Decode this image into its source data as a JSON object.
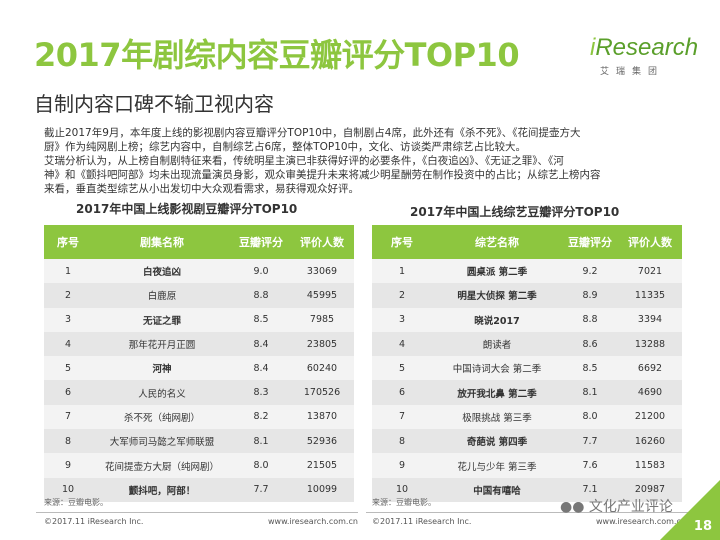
{
  "title": "2017年剧综内容豆瓣评分TOP10",
  "subtitle": "自制内容口碑不输卫视内容",
  "logo": {
    "text_prefix": "i",
    "text_main": "Research",
    "cn": "艾瑞集团"
  },
  "intro": [
    "截止2017年9月，本年度上线的影视剧内容豆瓣评分TOP10中，自制剧占4席，此外还有《杀不死》、《花间提壶方大",
    "厨》作为纯网剧上榜；综艺内容中，自制综艺占6席，整体TOP10中，文化、访谈类严肃综艺占比较大。",
    "艾瑞分析认为，从上榜自制剧特征来看，传统明星主演已非获得好评的必要条件，《白夜追凶》、《无证之罪》、《河",
    "神》和《颤抖吧阿部》均未出现流量演员身影，观众审美提升未来将减少明星酬劳在制作投资中的占比；从综艺上榜内容",
    "来看，垂直类型综艺从小出发切中大众观看需求，易获得观众好评。"
  ],
  "drama": {
    "title": "2017年中国上线影视剧豆瓣评分TOP10",
    "headers": [
      "序号",
      "剧集名称",
      "豆瓣评分",
      "评价人数"
    ],
    "rows": [
      {
        "rank": "1",
        "name": "白夜追凶",
        "score": "9.0",
        "count": "33069",
        "bold": true
      },
      {
        "rank": "2",
        "name": "白鹿原",
        "score": "8.8",
        "count": "45995",
        "bold": false
      },
      {
        "rank": "3",
        "name": "无证之罪",
        "score": "8.5",
        "count": "7985",
        "bold": true
      },
      {
        "rank": "4",
        "name": "那年花开月正圆",
        "score": "8.4",
        "count": "23805",
        "bold": false
      },
      {
        "rank": "5",
        "name": "河神",
        "score": "8.4",
        "count": "60240",
        "bold": true
      },
      {
        "rank": "6",
        "name": "人民的名义",
        "score": "8.3",
        "count": "170526",
        "bold": false
      },
      {
        "rank": "7",
        "name": "杀不死（纯网剧）",
        "score": "8.2",
        "count": "13870",
        "bold": false
      },
      {
        "rank": "8",
        "name": "大军师司马懿之军师联盟",
        "score": "8.1",
        "count": "52936",
        "bold": false
      },
      {
        "rank": "9",
        "name": "花间提壶方大厨（纯网剧）",
        "score": "8.0",
        "count": "21505",
        "bold": false
      },
      {
        "rank": "10",
        "name": "颤抖吧，阿部！",
        "score": "7.7",
        "count": "10099",
        "bold": true
      }
    ],
    "source": "来源：豆瓣电影。"
  },
  "variety": {
    "title": "2017年中国上线综艺豆瓣评分TOP10",
    "headers": [
      "序号",
      "综艺名称",
      "豆瓣评分",
      "评价人数"
    ],
    "rows": [
      {
        "rank": "1",
        "name": "圆桌派 第二季",
        "score": "9.2",
        "count": "7021",
        "bold": true
      },
      {
        "rank": "2",
        "name": "明星大侦探 第二季",
        "score": "8.9",
        "count": "11335",
        "bold": true
      },
      {
        "rank": "3",
        "name": "晓说2017",
        "score": "8.8",
        "count": "3394",
        "bold": true
      },
      {
        "rank": "4",
        "name": "朗读者",
        "score": "8.6",
        "count": "13288",
        "bold": false
      },
      {
        "rank": "5",
        "name": "中国诗词大会 第二季",
        "score": "8.5",
        "count": "6692",
        "bold": false
      },
      {
        "rank": "6",
        "name": "放开我北鼻 第二季",
        "score": "8.1",
        "count": "4690",
        "bold": true
      },
      {
        "rank": "7",
        "name": "极限挑战 第三季",
        "score": "8.0",
        "count": "21200",
        "bold": false
      },
      {
        "rank": "8",
        "name": "奇葩说 第四季",
        "score": "7.7",
        "count": "16260",
        "bold": true
      },
      {
        "rank": "9",
        "name": "花儿与少年 第三季",
        "score": "7.6",
        "count": "11583",
        "bold": false
      },
      {
        "rank": "10",
        "name": "中国有嘻哈",
        "score": "7.1",
        "count": "20987",
        "bold": true
      }
    ],
    "source": "来源：豆瓣电影。"
  },
  "footer": {
    "copyright": "©2017.11 iResearch Inc.",
    "url": "www.iresearch.com.cn"
  },
  "watermark": "文化产业评论",
  "page_number": "18",
  "colors": {
    "accent": "#8dc63f",
    "header_bg": "#8dc63f"
  }
}
